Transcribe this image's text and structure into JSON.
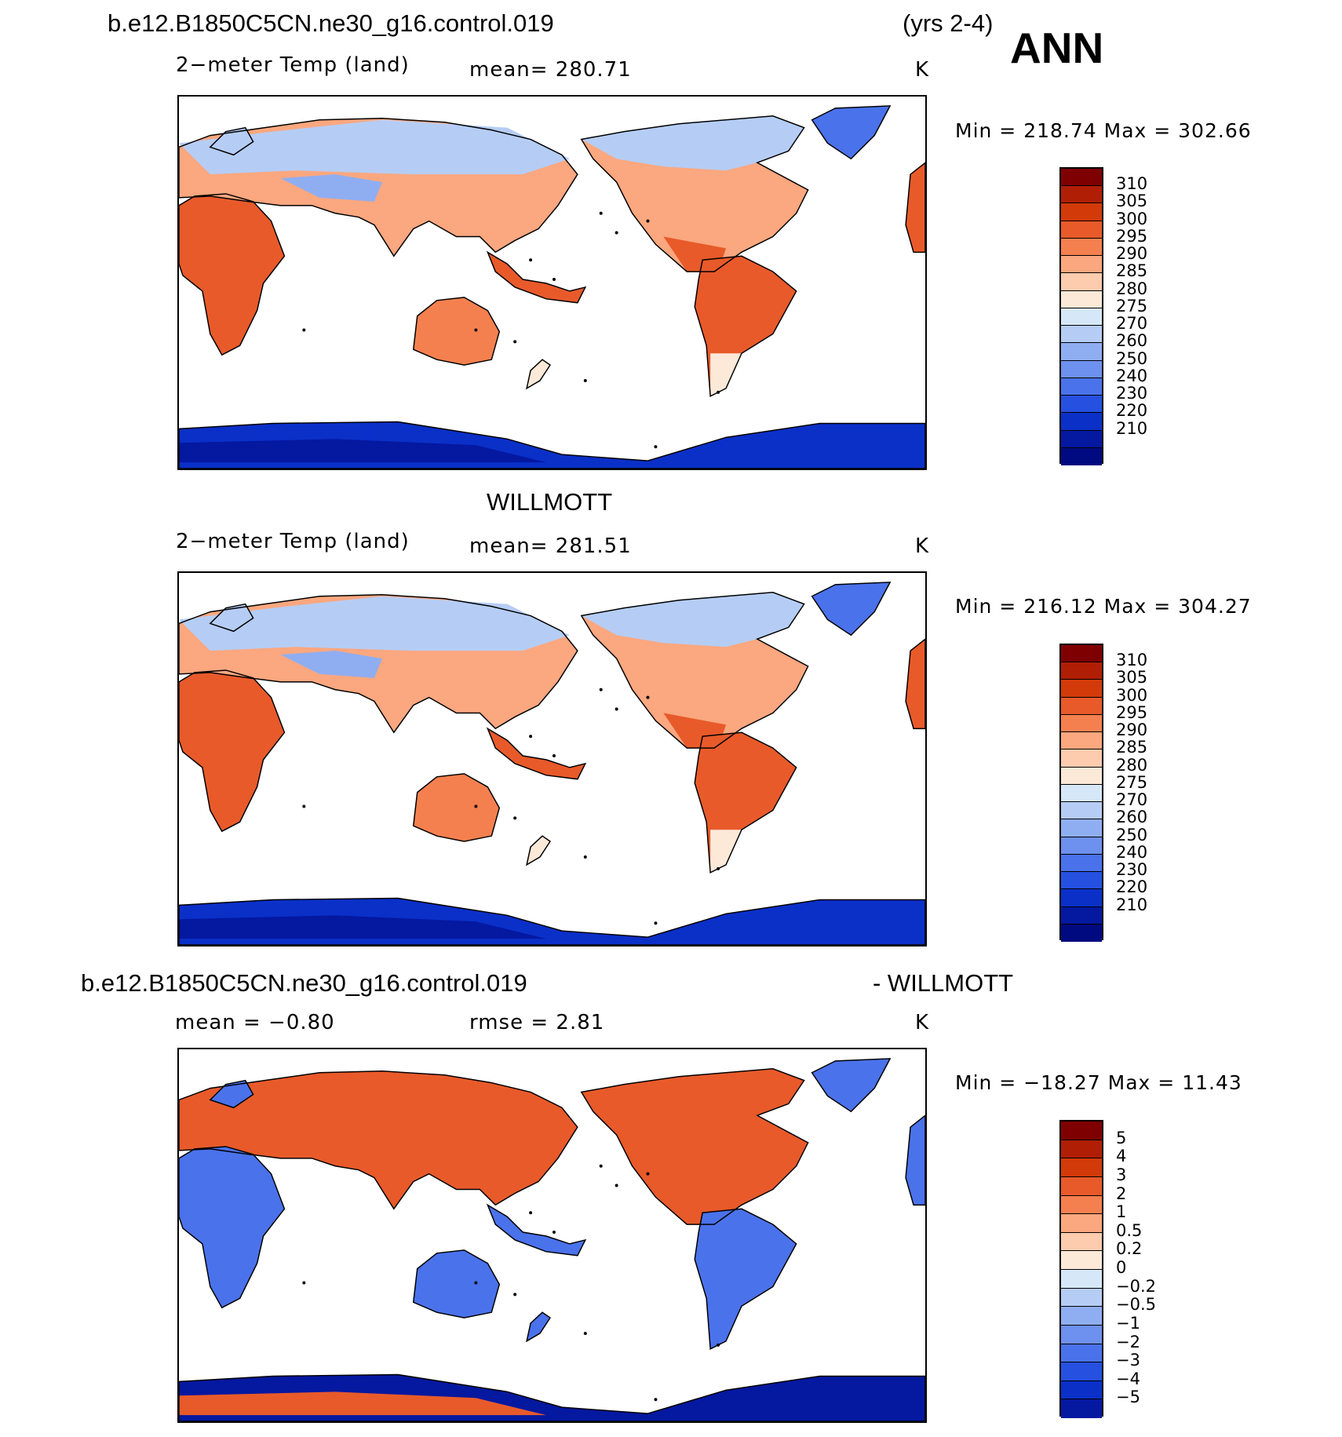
{
  "header": {
    "case_name": "b.e12.B1850C5CN.ne30_g16.control.019",
    "years": "(yrs 2-4)",
    "season": "ANN"
  },
  "panels": [
    {
      "id": "model",
      "variable": "2−meter Temp (land)",
      "stat": "mean=  280.71",
      "units": "K",
      "minmax": "Min  =  218.74  Max  =  302.66"
    },
    {
      "id": "obs",
      "title": "WILLMOTT",
      "variable": "2−meter Temp (land)",
      "stat": "mean=  281.51",
      "units": "K",
      "minmax": "Min  =  216.12  Max  =  304.27"
    },
    {
      "id": "diff",
      "title_left": "b.e12.B1850C5CN.ne30_g16.control.019",
      "title_right": "- WILLMOTT",
      "stat_mean": "mean  =      −0.80",
      "stat_rmse": "rmse  =      2.81",
      "units": "K",
      "minmax": "Min  =  −18.27  Max  =     11.43"
    }
  ],
  "colorbars": {
    "absolute": {
      "colors": [
        "#7f0000",
        "#b01e06",
        "#d23a0a",
        "#e85a2a",
        "#f5804f",
        "#fba77f",
        "#fdcbad",
        "#fde9d8",
        "#d6e8f8",
        "#b5cdf5",
        "#8faef2",
        "#6e90ee",
        "#4a72eb",
        "#2550e0",
        "#0a30c8",
        "#0418a0",
        "#000a80"
      ],
      "labels": [
        "310",
        "305",
        "300",
        "295",
        "290",
        "285",
        "280",
        "275",
        "270",
        "260",
        "250",
        "240",
        "230",
        "220",
        "210"
      ]
    },
    "difference": {
      "colors": [
        "#7f0000",
        "#b01e06",
        "#d23a0a",
        "#e85a2a",
        "#f5804f",
        "#fba77f",
        "#fdcbad",
        "#fde9d8",
        "#d6e8f8",
        "#b5cdf5",
        "#8faef2",
        "#6e90ee",
        "#4a72eb",
        "#2550e0",
        "#0a30c8",
        "#0418a0"
      ],
      "labels": [
        "5",
        "4",
        "3",
        "2",
        "1",
        "0.5",
        "0.2",
        "0",
        "−0.2",
        "−0.5",
        "−1",
        "−2",
        "−3",
        "−4",
        "−5"
      ]
    }
  },
  "map_colors": {
    "tropics": "#e85a2a",
    "subtropics": "#f5804f",
    "midlat": "#fba77f",
    "coolmid": "#fde9d8",
    "subarctic": "#b5cdf5",
    "arctic": "#8faef2",
    "polar": "#4a72eb",
    "ice": "#0a30c8",
    "deepice": "#0418a0",
    "diff_warm": "#e85a2a",
    "diff_cool": "#4a72eb",
    "diff_deep": "#0418a0"
  }
}
